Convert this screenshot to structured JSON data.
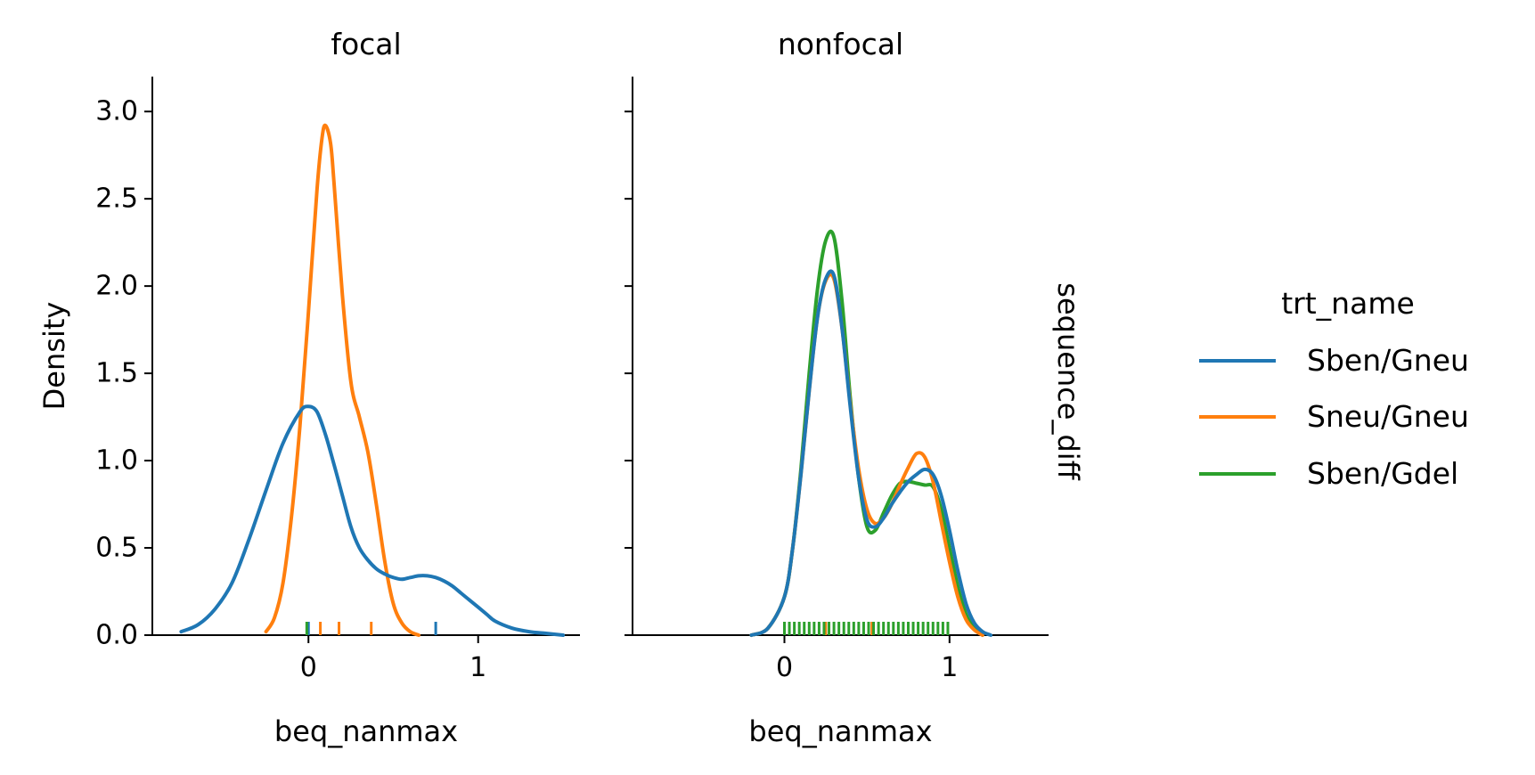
{
  "colors": {
    "Sben/Gneu": "#1f77b4",
    "Sneu/Gneu": "#ff7f0e",
    "Sben/Gdel": "#2ca02c"
  },
  "legend": {
    "title": "trt_name",
    "entries": [
      "Sben/Gneu",
      "Sneu/Gneu",
      "Sben/Gdel"
    ]
  },
  "row_label": "sequence_diff",
  "chart_data": [
    {
      "type": "line",
      "title": "focal",
      "xlabel": "beq_nanmax",
      "ylabel": "Density",
      "xlim": [
        -0.92,
        1.6
      ],
      "ylim": [
        0,
        3.2
      ],
      "xticks": [
        0,
        1
      ],
      "xtick_labels": [
        "0",
        "1"
      ],
      "yticks": [
        0.0,
        0.5,
        1.0,
        1.5,
        2.0,
        2.5,
        3.0
      ],
      "ytick_labels": [
        "0.0",
        "0.5",
        "1.0",
        "1.5",
        "2.0",
        "2.5",
        "3.0"
      ],
      "series": [
        {
          "name": "Sben/Gneu",
          "x": [
            -0.75,
            -0.65,
            -0.55,
            -0.45,
            -0.35,
            -0.25,
            -0.15,
            -0.05,
            0.0,
            0.05,
            0.1,
            0.15,
            0.2,
            0.25,
            0.3,
            0.35,
            0.4,
            0.45,
            0.5,
            0.55,
            0.6,
            0.65,
            0.7,
            0.75,
            0.8,
            0.85,
            0.9,
            0.95,
            1.0,
            1.05,
            1.1,
            1.2,
            1.3,
            1.4,
            1.5
          ],
          "values": [
            0.02,
            0.06,
            0.15,
            0.3,
            0.55,
            0.83,
            1.1,
            1.28,
            1.31,
            1.28,
            1.15,
            0.98,
            0.8,
            0.62,
            0.5,
            0.43,
            0.38,
            0.35,
            0.33,
            0.32,
            0.33,
            0.34,
            0.34,
            0.33,
            0.31,
            0.28,
            0.24,
            0.2,
            0.16,
            0.12,
            0.08,
            0.04,
            0.02,
            0.01,
            0.0
          ]
        },
        {
          "name": "Sneu/Gneu",
          "x": [
            -0.25,
            -0.2,
            -0.15,
            -0.1,
            -0.05,
            0.0,
            0.05,
            0.08,
            0.1,
            0.13,
            0.15,
            0.2,
            0.25,
            0.3,
            0.35,
            0.4,
            0.45,
            0.5,
            0.55,
            0.6,
            0.65
          ],
          "values": [
            0.02,
            0.1,
            0.3,
            0.68,
            1.2,
            1.85,
            2.55,
            2.85,
            2.92,
            2.82,
            2.6,
            1.95,
            1.45,
            1.25,
            1.05,
            0.75,
            0.42,
            0.18,
            0.07,
            0.02,
            0.0
          ]
        }
      ],
      "rug": [
        {
          "name": "Sben/Gneu",
          "x": [
            0.0,
            0.75
          ]
        },
        {
          "name": "Sneu/Gneu",
          "x": [
            0.07,
            0.18,
            0.37
          ]
        },
        {
          "name": "Sben/Gdel",
          "x": [
            -0.01
          ]
        }
      ]
    },
    {
      "type": "line",
      "title": "nonfocal",
      "xlabel": "beq_nanmax",
      "ylabel": "",
      "xlim": [
        -0.92,
        1.6
      ],
      "ylim": [
        0,
        3.2
      ],
      "xticks": [
        0,
        1
      ],
      "xtick_labels": [
        "0",
        "1"
      ],
      "yticks": [
        0.0,
        0.5,
        1.0,
        1.5,
        2.0,
        2.5,
        3.0
      ],
      "ytick_labels": [],
      "series": [
        {
          "name": "Sben/Gneu",
          "x": [
            -0.2,
            -0.1,
            0.0,
            0.05,
            0.1,
            0.15,
            0.2,
            0.25,
            0.3,
            0.35,
            0.4,
            0.45,
            0.5,
            0.55,
            0.6,
            0.65,
            0.7,
            0.75,
            0.8,
            0.85,
            0.9,
            0.95,
            1.0,
            1.05,
            1.1,
            1.15,
            1.2,
            1.25
          ],
          "values": [
            0.0,
            0.04,
            0.22,
            0.5,
            0.92,
            1.4,
            1.82,
            2.04,
            2.06,
            1.75,
            1.3,
            0.9,
            0.66,
            0.62,
            0.67,
            0.75,
            0.82,
            0.88,
            0.92,
            0.95,
            0.92,
            0.8,
            0.6,
            0.37,
            0.18,
            0.07,
            0.02,
            0.0
          ]
        },
        {
          "name": "Sneu/Gneu",
          "x": [
            -0.2,
            -0.1,
            0.0,
            0.05,
            0.1,
            0.15,
            0.2,
            0.25,
            0.3,
            0.35,
            0.4,
            0.45,
            0.5,
            0.55,
            0.6,
            0.65,
            0.7,
            0.75,
            0.8,
            0.85,
            0.9,
            0.95,
            1.0,
            1.05,
            1.1,
            1.15,
            1.2
          ],
          "values": [
            0.0,
            0.04,
            0.22,
            0.5,
            0.92,
            1.4,
            1.82,
            2.03,
            2.04,
            1.75,
            1.32,
            0.95,
            0.72,
            0.64,
            0.67,
            0.75,
            0.86,
            0.96,
            1.04,
            1.02,
            0.88,
            0.65,
            0.42,
            0.22,
            0.09,
            0.03,
            0.0
          ]
        },
        {
          "name": "Sben/Gdel",
          "x": [
            -0.2,
            -0.1,
            0.0,
            0.05,
            0.1,
            0.15,
            0.2,
            0.25,
            0.3,
            0.35,
            0.4,
            0.45,
            0.5,
            0.55,
            0.6,
            0.65,
            0.7,
            0.75,
            0.8,
            0.85,
            0.9,
            0.95,
            1.0,
            1.05,
            1.1,
            1.15,
            1.2
          ],
          "values": [
            0.0,
            0.04,
            0.22,
            0.5,
            0.95,
            1.5,
            1.98,
            2.26,
            2.28,
            1.9,
            1.35,
            0.9,
            0.62,
            0.6,
            0.7,
            0.8,
            0.87,
            0.88,
            0.87,
            0.86,
            0.85,
            0.72,
            0.5,
            0.28,
            0.12,
            0.04,
            0.0
          ]
        }
      ],
      "rug": [
        {
          "name": "Sneu/Gneu",
          "x": [
            0.25,
            0.53
          ]
        },
        {
          "name": "Sben/Gdel",
          "x": [
            0.0,
            0.03,
            0.06,
            0.09,
            0.12,
            0.15,
            0.18,
            0.21,
            0.24,
            0.27,
            0.3,
            0.33,
            0.36,
            0.39,
            0.42,
            0.45,
            0.48,
            0.51,
            0.54,
            0.57,
            0.6,
            0.63,
            0.66,
            0.69,
            0.72,
            0.75,
            0.78,
            0.81,
            0.84,
            0.87,
            0.9,
            0.93,
            0.96,
            0.99
          ]
        }
      ]
    }
  ]
}
